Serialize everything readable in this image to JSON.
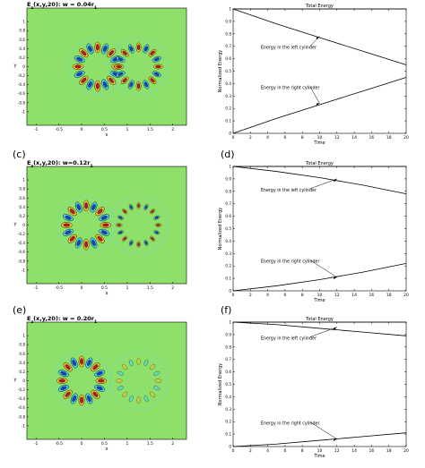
{
  "figure": {
    "panel_labels": [
      "(c)",
      "(d)",
      "(e)",
      "(f)"
    ]
  },
  "colors": {
    "field_background": "#8fe06a",
    "positive_high": "#b0192e",
    "positive_mid": "#f4c430",
    "negative_high": "#1f3fb8",
    "negative_mid": "#4ad8f0",
    "curve": "#000000"
  },
  "chart_data": [
    {
      "type": "heatmap",
      "title": "E_z(x,y,20): w = 0.04r_1",
      "xlabel": "x",
      "ylabel": "y",
      "xlim": [
        -1.2,
        2.3
      ],
      "ylim": [
        -1.3,
        1.3
      ],
      "x_ticks": [
        "-1",
        "-0.5",
        "0",
        "0.5",
        "1",
        "1.5",
        "2"
      ],
      "y_ticks": [
        "1",
        "0.8",
        "0.6",
        "0.4",
        "0.2",
        "0",
        "-0.2",
        "-0.4",
        "-0.6",
        "-0.8",
        "-1"
      ],
      "cylinders": [
        {
          "center": [
            0.35,
            0.0
          ],
          "radius": 0.55,
          "lobes": 16,
          "amplitude": 1.0
        },
        {
          "center": [
            1.25,
            0.0
          ],
          "radius": 0.55,
          "lobes": 16,
          "amplitude": 0.85
        }
      ]
    },
    {
      "type": "line",
      "xlabel": "Time",
      "ylabel": "Normalized Energy",
      "xlim": [
        0,
        20
      ],
      "ylim": [
        0,
        1
      ],
      "x_ticks": [
        "0",
        "2",
        "4",
        "6",
        "8",
        "10",
        "12",
        "14",
        "16",
        "18",
        "20"
      ],
      "y_ticks": [
        "0",
        "0.1",
        "0.2",
        "0.3",
        "0.4",
        "0.5",
        "0.6",
        "0.7",
        "0.8",
        "0.9",
        "1"
      ],
      "series": [
        {
          "name": "Total Energy",
          "x": [
            0,
            20
          ],
          "y": [
            1.0,
            1.0
          ]
        },
        {
          "name": "Energy in the left cylinder",
          "x": [
            0,
            5,
            10,
            15,
            20
          ],
          "y": [
            1.0,
            0.88,
            0.77,
            0.66,
            0.55
          ]
        },
        {
          "name": "Energy in the right cylinder",
          "x": [
            0,
            5,
            10,
            15,
            20
          ],
          "y": [
            0.0,
            0.12,
            0.23,
            0.34,
            0.45
          ]
        }
      ],
      "annotations": [
        {
          "text": "Total Energy",
          "point": [
            10,
            1.0
          ]
        },
        {
          "text": "Energy in the left cylinder",
          "point": [
            10,
            0.78
          ]
        },
        {
          "text": "Energy in the right cylinder",
          "point": [
            10,
            0.24
          ]
        }
      ]
    },
    {
      "type": "heatmap",
      "title": "E_z(x,y,20): w=0.12r_1",
      "xlabel": "x",
      "ylabel": "y",
      "xlim": [
        -1.2,
        2.3
      ],
      "ylim": [
        -1.3,
        1.3
      ],
      "x_ticks": [
        "-1",
        "-0.5",
        "0",
        "0.5",
        "1",
        "1.5",
        "2"
      ],
      "y_ticks": [
        "1",
        "0.8",
        "0.6",
        "0.4",
        "0.2",
        "0",
        "-0.2",
        "-0.4",
        "-0.6",
        "-0.8",
        "-1"
      ],
      "cylinders": [
        {
          "center": [
            0.1,
            0.0
          ],
          "radius": 0.55,
          "lobes": 16,
          "amplitude": 1.0
        },
        {
          "center": [
            1.25,
            0.0
          ],
          "radius": 0.55,
          "lobes": 16,
          "amplitude": 0.5
        }
      ]
    },
    {
      "type": "line",
      "xlabel": "Time",
      "ylabel": "Normalized Energy",
      "xlim": [
        0,
        20
      ],
      "ylim": [
        0,
        1
      ],
      "x_ticks": [
        "0",
        "2",
        "4",
        "6",
        "8",
        "10",
        "12",
        "14",
        "16",
        "18",
        "20"
      ],
      "y_ticks": [
        "0",
        "0.1",
        "0.2",
        "0.3",
        "0.4",
        "0.5",
        "0.6",
        "0.7",
        "0.8",
        "0.9",
        "1"
      ],
      "series": [
        {
          "name": "Total Energy",
          "x": [
            0,
            20
          ],
          "y": [
            1.0,
            1.0
          ]
        },
        {
          "name": "Energy in the left cylinder",
          "x": [
            0,
            5,
            10,
            15,
            20
          ],
          "y": [
            1.0,
            0.96,
            0.91,
            0.85,
            0.78
          ]
        },
        {
          "name": "Energy in the right cylinder",
          "x": [
            0,
            5,
            10,
            15,
            20
          ],
          "y": [
            0.0,
            0.04,
            0.09,
            0.15,
            0.22
          ]
        }
      ],
      "annotations": [
        {
          "text": "Total Energy",
          "point": [
            10,
            1.0
          ]
        },
        {
          "text": "Energy in the left cylinder",
          "point": [
            12,
            0.9
          ]
        },
        {
          "text": "Energy in the right cylinder",
          "point": [
            12,
            0.11
          ]
        }
      ]
    },
    {
      "type": "heatmap",
      "title": "E_z(x,y,20): w = 0.20r_1",
      "xlabel": "x",
      "ylabel": "y",
      "xlim": [
        -1.2,
        2.3
      ],
      "ylim": [
        -1.3,
        1.3
      ],
      "x_ticks": [
        "-1",
        "-0.5",
        "0",
        "0.5",
        "1",
        "1.5",
        "2"
      ],
      "y_ticks": [
        "1",
        "0.8",
        "0.6",
        "0.4",
        "0.2",
        "0",
        "-0.2",
        "-0.4",
        "-0.6",
        "-0.8",
        "-1"
      ],
      "cylinders": [
        {
          "center": [
            0.0,
            0.0
          ],
          "radius": 0.55,
          "lobes": 16,
          "amplitude": 1.0
        },
        {
          "center": [
            1.25,
            0.0
          ],
          "radius": 0.55,
          "lobes": 16,
          "amplitude": 0.3
        }
      ]
    },
    {
      "type": "line",
      "xlabel": "Time",
      "ylabel": "Normalized Energy",
      "xlim": [
        0,
        20
      ],
      "ylim": [
        0,
        1
      ],
      "x_ticks": [
        "0",
        "2",
        "4",
        "6",
        "8",
        "10",
        "12",
        "14",
        "16",
        "18",
        "20"
      ],
      "y_ticks": [
        "0",
        "0.1",
        "0.2",
        "0.3",
        "0.4",
        "0.5",
        "0.6",
        "0.7",
        "0.8",
        "0.9",
        "1"
      ],
      "series": [
        {
          "name": "Total Energy",
          "x": [
            0,
            20
          ],
          "y": [
            1.0,
            1.0
          ]
        },
        {
          "name": "Energy in the left cylinder",
          "x": [
            0,
            5,
            10,
            15,
            20
          ],
          "y": [
            1.0,
            0.98,
            0.95,
            0.92,
            0.89
          ]
        },
        {
          "name": "Energy in the right cylinder",
          "x": [
            0,
            5,
            10,
            15,
            20
          ],
          "y": [
            0.0,
            0.02,
            0.05,
            0.08,
            0.11
          ]
        }
      ],
      "annotations": [
        {
          "text": "Total Energy",
          "point": [
            10,
            1.0
          ]
        },
        {
          "text": "Energy in the left cylinder",
          "point": [
            12,
            0.96
          ]
        },
        {
          "text": "Energy in the right cylinder",
          "point": [
            12,
            0.06
          ]
        }
      ]
    }
  ]
}
